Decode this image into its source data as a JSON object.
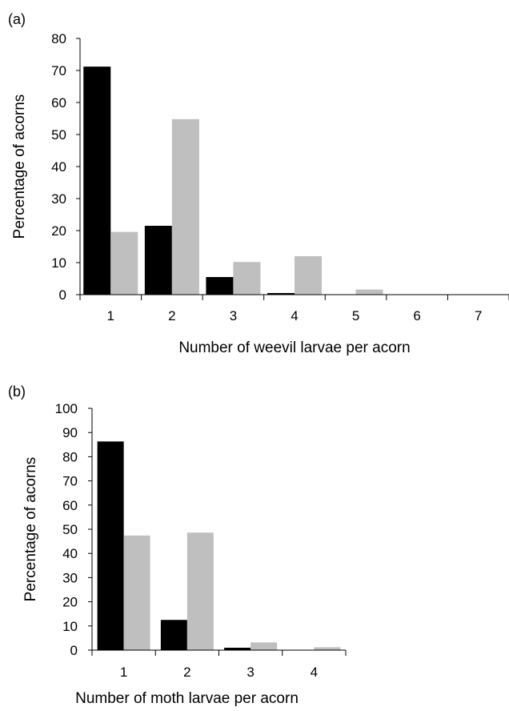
{
  "chart_data": [
    {
      "type": "bar",
      "panel_label": "(a)",
      "categories": [
        "1",
        "2",
        "3",
        "4",
        "5",
        "6",
        "7"
      ],
      "series": [
        {
          "color": "#000000",
          "values": [
            71.2,
            21.5,
            5.5,
            0.5,
            0,
            0,
            0
          ]
        },
        {
          "color": "#bfbfbf",
          "values": [
            19.6,
            54.8,
            10.2,
            12.0,
            1.6,
            0,
            0
          ]
        }
      ],
      "xlabel": "Number of weevil larvae per acorn",
      "ylabel": "Percentage of acorns",
      "ylim": [
        0,
        80
      ],
      "yticks": [
        "0",
        "10",
        "20",
        "30",
        "40",
        "50",
        "60",
        "70",
        "80"
      ],
      "grid": false
    },
    {
      "type": "bar",
      "panel_label": "(b)",
      "categories": [
        "1",
        "2",
        "3",
        "4"
      ],
      "series": [
        {
          "color": "#000000",
          "values": [
            86.3,
            12.5,
            1.0,
            0
          ]
        },
        {
          "color": "#bfbfbf",
          "values": [
            47.4,
            48.6,
            3.2,
            1.2
          ]
        }
      ],
      "xlabel": "Number of moth larvae per acorn",
      "ylabel": "Percentage of acorns",
      "ylim": [
        0,
        100
      ],
      "yticks": [
        "0",
        "10",
        "20",
        "30",
        "40",
        "50",
        "60",
        "70",
        "80",
        "90",
        "100"
      ],
      "grid": false
    }
  ]
}
